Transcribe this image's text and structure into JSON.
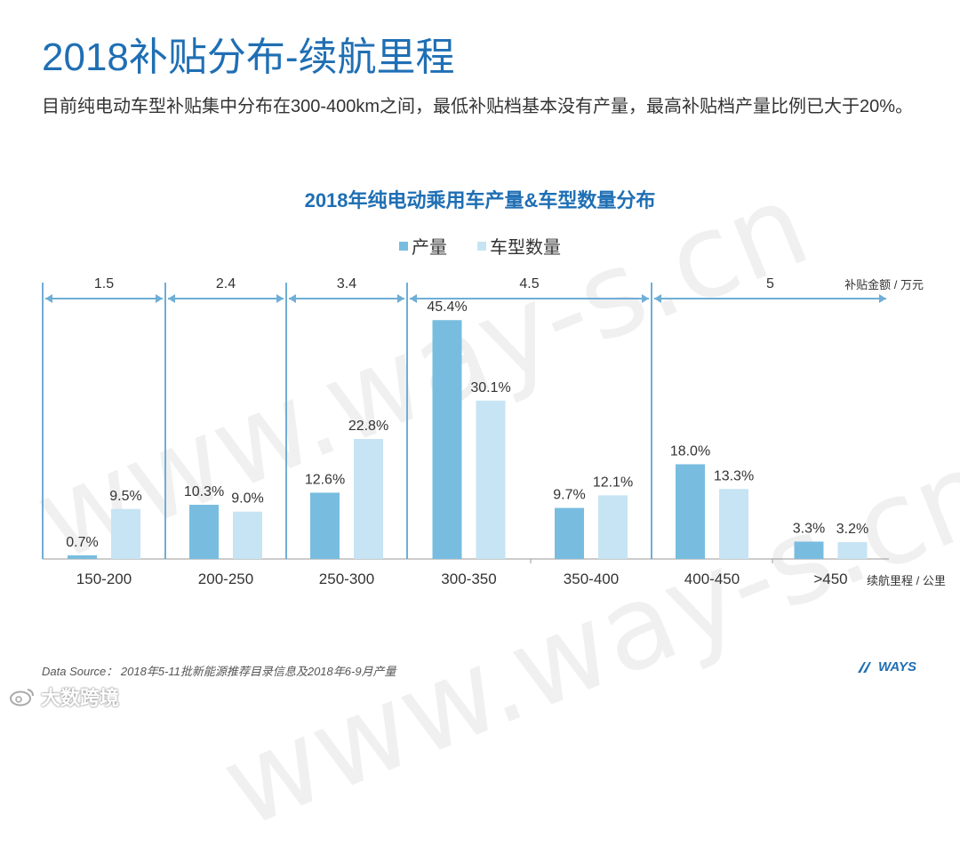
{
  "header": {
    "title": "2018补贴分布-续航里程",
    "subtitle": "目前纯电动车型补贴集中分布在300-400km之间，最低补贴档基本没有产量，最高补贴档产量比例已大于20%。"
  },
  "watermark": {
    "text": "www.way-s.cn"
  },
  "footer": {
    "source": "Data Source： 2018年5-11批新能源推荐目录信息及2018年6-9月产量",
    "brand": "WAYS",
    "corner_watermark": "大数跨境"
  },
  "colors": {
    "production": "#78bddf",
    "models": "#c6e4f3",
    "title": "#1f6fb4",
    "bracket": "#6faed6",
    "axis": "#999999"
  },
  "icons": {
    "brand": "ways-logo-icon",
    "corner": "weibo-icon"
  },
  "chart_data": {
    "type": "bar",
    "title": "2018年纯电动乘用车产量&车型数量分布",
    "categories": [
      "150-200",
      "200-250",
      "250-300",
      "300-350",
      "350-400",
      "400-450",
      ">450"
    ],
    "series": [
      {
        "name": "产量",
        "values": [
          0.7,
          10.3,
          12.6,
          45.4,
          9.7,
          18.0,
          3.3
        ],
        "labels": [
          "0.7%",
          "10.3%",
          "12.6%",
          "45.4%",
          "9.7%",
          "18.0%",
          "3.3%"
        ]
      },
      {
        "name": "车型数量",
        "values": [
          9.5,
          9.0,
          22.8,
          30.1,
          12.1,
          13.3,
          3.2
        ],
        "labels": [
          "9.5%",
          "9.0%",
          "22.8%",
          "30.1%",
          "12.1%",
          "13.3%",
          "3.2%"
        ]
      }
    ],
    "ylim": [
      0,
      50
    ],
    "x_unit_label": "续航里程 / 公里",
    "subsidy_unit_label": "补贴金额 / 万元",
    "subsidy_bands": [
      {
        "label": "1.5",
        "from": 0,
        "to": 1
      },
      {
        "label": "2.4",
        "from": 1,
        "to": 2
      },
      {
        "label": "3.4",
        "from": 2,
        "to": 3
      },
      {
        "label": "4.5",
        "from": 3,
        "to": 5
      },
      {
        "label": "5",
        "from": 5,
        "to": 7
      }
    ],
    "legend_position": "top-center",
    "grid": false
  }
}
